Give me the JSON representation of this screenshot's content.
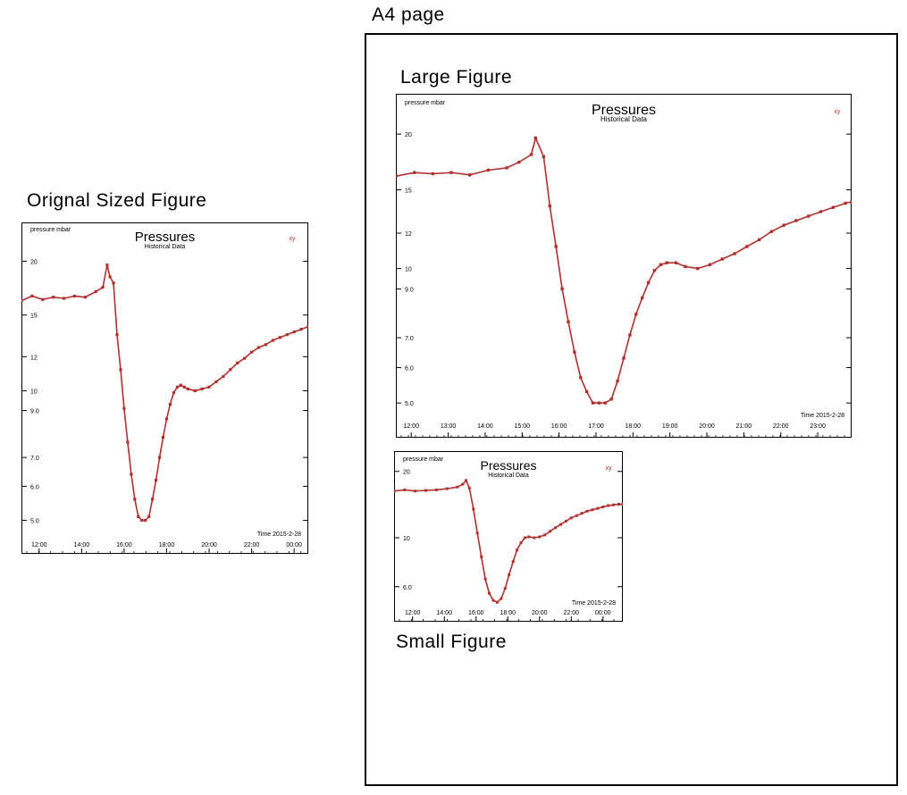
{
  "captions": {
    "a4": "A4 page",
    "original": "Orignal  Sized  Figure",
    "large": "Large  Figure",
    "small": "Small  Figure"
  },
  "colors": {
    "series": "#b0302e",
    "frame": "#000000"
  },
  "chart_data": [
    {
      "type": "line",
      "figure": "original",
      "title": "Pressures",
      "subtitle": "Historical Data",
      "ylabel": "pressure mbar",
      "xlabel": "Time 2015-2-28",
      "legend": "xy",
      "legend_position": "top-right",
      "y_scale": "log",
      "ylim": [
        4.2,
        24.5
      ],
      "xlim": [
        "2015-02-28 11:10",
        "2015-02-29 00:40"
      ],
      "x_ticks": [
        "12:00",
        "14:00",
        "16:00",
        "18:00",
        "20:00",
        "22:00",
        "00:00"
      ],
      "y_ticks": [
        "5.0",
        "6.0",
        "7.0",
        "9.0",
        "10",
        "12",
        "15",
        "20"
      ],
      "grid": false,
      "series": [
        {
          "x": [
            "2015-02-28 11:10",
            "2015-02-28 11:40",
            "2015-02-28 12:10",
            "2015-02-28 12:40",
            "2015-02-28 13:10",
            "2015-02-28 13:40",
            "2015-02-28 14:10",
            "2015-02-28 14:40",
            "2015-02-28 15:00",
            "2015-02-28 15:12",
            "2015-02-28 15:20",
            "2015-02-28 15:30",
            "2015-02-28 15:40",
            "2015-02-28 15:50",
            "2015-02-28 16:00",
            "2015-02-28 16:10",
            "2015-02-28 16:20",
            "2015-02-28 16:30",
            "2015-02-28 16:40",
            "2015-02-28 16:50",
            "2015-02-28 17:00",
            "2015-02-28 17:10",
            "2015-02-28 17:20",
            "2015-02-28 17:30",
            "2015-02-28 17:40",
            "2015-02-28 17:50",
            "2015-02-28 18:00",
            "2015-02-28 18:10",
            "2015-02-28 18:20",
            "2015-02-28 18:30",
            "2015-02-28 18:40",
            "2015-02-28 18:50",
            "2015-02-28 19:00",
            "2015-02-28 19:20",
            "2015-02-28 19:40",
            "2015-02-28 20:00",
            "2015-02-28 20:20",
            "2015-02-28 20:40",
            "2015-02-28 21:00",
            "2015-02-28 21:20",
            "2015-02-28 21:40",
            "2015-02-28 22:00",
            "2015-02-28 22:20",
            "2015-02-28 22:40",
            "2015-02-28 23:00",
            "2015-02-28 23:20",
            "2015-02-28 23:40",
            "2015-02-29 00:00",
            "2015-02-29 00:20",
            "2015-02-29 00:40"
          ],
          "values": [
            16.2,
            16.6,
            16.3,
            16.5,
            16.4,
            16.6,
            16.5,
            17.0,
            17.4,
            19.6,
            18.4,
            17.8,
            13.5,
            11.2,
            9.1,
            7.6,
            6.4,
            5.6,
            5.1,
            5.0,
            5.0,
            5.1,
            5.6,
            6.2,
            7.0,
            7.8,
            8.6,
            9.3,
            9.9,
            10.2,
            10.3,
            10.2,
            10.1,
            10.0,
            10.1,
            10.2,
            10.5,
            10.8,
            11.2,
            11.6,
            11.9,
            12.3,
            12.6,
            12.8,
            13.1,
            13.3,
            13.5,
            13.7,
            13.9,
            14.1
          ]
        }
      ]
    },
    {
      "type": "line",
      "figure": "large",
      "title": "Pressures",
      "subtitle": "Historical Data",
      "ylabel": "pressure mbar",
      "xlabel": "Time 2015-2-28",
      "legend": "xy",
      "legend_position": "top-right",
      "y_scale": "log",
      "ylim": [
        4.2,
        24.5
      ],
      "xlim": [
        "2015-02-28 11:35",
        "2015-02-28 23:55"
      ],
      "x_ticks": [
        "12:00",
        "13:00",
        "14:00",
        "15:00",
        "16:00",
        "17:00",
        "18:00",
        "19:00",
        "20:00",
        "21:00",
        "22:00",
        "23:00"
      ],
      "y_ticks": [
        "5.0",
        "6.0",
        "7.0",
        "9.0",
        "10",
        "12",
        "15",
        "20"
      ],
      "grid": false,
      "series": [
        {
          "x": [
            "2015-02-28 11:35",
            "2015-02-28 12:05",
            "2015-02-28 12:35",
            "2015-02-28 13:05",
            "2015-02-28 13:35",
            "2015-02-28 14:05",
            "2015-02-28 14:35",
            "2015-02-28 14:55",
            "2015-02-28 15:15",
            "2015-02-28 15:22",
            "2015-02-28 15:35",
            "2015-02-28 15:45",
            "2015-02-28 15:55",
            "2015-02-28 16:05",
            "2015-02-28 16:15",
            "2015-02-28 16:25",
            "2015-02-28 16:35",
            "2015-02-28 16:45",
            "2015-02-28 16:55",
            "2015-02-28 17:05",
            "2015-02-28 17:15",
            "2015-02-28 17:25",
            "2015-02-28 17:35",
            "2015-02-28 17:45",
            "2015-02-28 17:55",
            "2015-02-28 18:05",
            "2015-02-28 18:15",
            "2015-02-28 18:25",
            "2015-02-28 18:35",
            "2015-02-28 18:45",
            "2015-02-28 18:55",
            "2015-02-28 19:10",
            "2015-02-28 19:25",
            "2015-02-28 19:45",
            "2015-02-28 20:05",
            "2015-02-28 20:25",
            "2015-02-28 20:45",
            "2015-02-28 21:05",
            "2015-02-28 21:25",
            "2015-02-28 21:45",
            "2015-02-28 22:05",
            "2015-02-28 22:25",
            "2015-02-28 22:45",
            "2015-02-28 23:05",
            "2015-02-28 23:25",
            "2015-02-28 23:45",
            "2015-02-28 23:55"
          ],
          "values": [
            16.1,
            16.4,
            16.3,
            16.4,
            16.2,
            16.6,
            16.8,
            17.3,
            18.0,
            19.6,
            17.8,
            13.8,
            11.2,
            9.0,
            7.6,
            6.5,
            5.7,
            5.3,
            5.0,
            5.0,
            5.0,
            5.1,
            5.6,
            6.3,
            7.1,
            7.9,
            8.6,
            9.3,
            9.9,
            10.2,
            10.3,
            10.3,
            10.1,
            10.0,
            10.2,
            10.5,
            10.8,
            11.2,
            11.6,
            12.1,
            12.5,
            12.8,
            13.1,
            13.4,
            13.7,
            14.0,
            14.1
          ]
        }
      ]
    },
    {
      "type": "line",
      "figure": "small",
      "title": "Pressures",
      "subtitle": "Historical Data",
      "ylabel": "pressure mbar",
      "xlabel": "Time 2015-2-28",
      "legend": "xy",
      "legend_position": "top-right",
      "y_scale": "log",
      "ylim": [
        4.2,
        24.5
      ],
      "xlim": [
        "2015-02-28 10:50",
        "2015-02-29 01:15"
      ],
      "x_ticks": [
        "12:00",
        "14:00",
        "16:00",
        "18:00",
        "20:00",
        "22:00",
        "00:00"
      ],
      "y_ticks": [
        "6.0",
        "10",
        "20"
      ],
      "grid": false,
      "series": [
        {
          "x": [
            "2015-02-28 10:50",
            "2015-02-28 11:30",
            "2015-02-28 12:10",
            "2015-02-28 12:50",
            "2015-02-28 13:30",
            "2015-02-28 14:10",
            "2015-02-28 14:50",
            "2015-02-28 15:10",
            "2015-02-28 15:22",
            "2015-02-28 15:35",
            "2015-02-28 15:50",
            "2015-02-28 16:05",
            "2015-02-28 16:20",
            "2015-02-28 16:35",
            "2015-02-28 16:50",
            "2015-02-28 17:05",
            "2015-02-28 17:20",
            "2015-02-28 17:35",
            "2015-02-28 17:50",
            "2015-02-28 18:05",
            "2015-02-28 18:20",
            "2015-02-28 18:35",
            "2015-02-28 18:50",
            "2015-02-28 19:05",
            "2015-02-28 19:20",
            "2015-02-28 19:40",
            "2015-02-28 20:00",
            "2015-02-28 20:20",
            "2015-02-28 20:40",
            "2015-02-28 21:00",
            "2015-02-28 21:20",
            "2015-02-28 21:40",
            "2015-02-28 22:00",
            "2015-02-28 22:20",
            "2015-02-28 22:40",
            "2015-02-28 23:00",
            "2015-02-28 23:20",
            "2015-02-28 23:40",
            "2015-02-29 00:00",
            "2015-02-29 00:20",
            "2015-02-29 00:40",
            "2015-02-29 01:00",
            "2015-02-29 01:15"
          ],
          "values": [
            16.3,
            16.5,
            16.3,
            16.4,
            16.5,
            16.7,
            17.0,
            17.5,
            18.2,
            16.8,
            13.5,
            10.5,
            8.2,
            6.5,
            5.6,
            5.2,
            5.1,
            5.3,
            5.9,
            6.8,
            7.8,
            8.8,
            9.5,
            10.0,
            10.1,
            10.0,
            10.1,
            10.3,
            10.7,
            11.1,
            11.5,
            11.9,
            12.3,
            12.6,
            12.9,
            13.2,
            13.4,
            13.6,
            13.8,
            14.0,
            14.1,
            14.2,
            14.2
          ]
        }
      ]
    }
  ]
}
